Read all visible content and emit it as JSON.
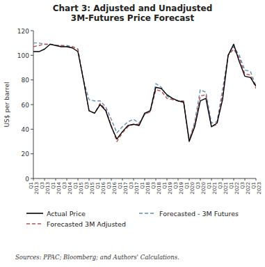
{
  "chart_data": {
    "type": "line",
    "title": "Chart 3: Adjusted and Unadjusted\n3M-Futures Price Forecast",
    "ylabel": "US$ per barrel",
    "source": "Sources: PPAC; Bloomberg; and Authors' Calculations.",
    "categories": [
      "Q1\n2013",
      null,
      "Q3\n2013",
      null,
      "Q1\n2014",
      null,
      "Q3\n2014",
      null,
      "Q1\n2015",
      null,
      "Q3\n2015",
      null,
      "Q1\n2016",
      null,
      "Q3\n2016",
      null,
      "Q1\n2017",
      null,
      "Q3\n2017",
      null,
      "Q1\n2018",
      null,
      "Q3\n2018",
      null,
      "Q1\n2019",
      null,
      "Q3\n2019",
      null,
      "Q1\n2020",
      null,
      "Q3\n2020",
      null,
      "Q1\n2021",
      null,
      "Q3\n2021",
      null,
      "Q1\n2022",
      null,
      "Q3\n2022",
      null,
      "Q1\n2023"
    ],
    "series": [
      {
        "name": "Actual Price",
        "color": "#000000",
        "line_style": "solid",
        "values": [
          103,
          103,
          105,
          109,
          108,
          107,
          107,
          106,
          103,
          80,
          55,
          53,
          60,
          55,
          42,
          32,
          38,
          43,
          44,
          43,
          53,
          55,
          74,
          73,
          68,
          65,
          63,
          62,
          30,
          42,
          63,
          65,
          42,
          45,
          64,
          100,
          109,
          95,
          83,
          82,
          75
        ]
      },
      {
        "name": "Forecasted - 3M Futures",
        "color": "#5B8DB8",
        "line_style": "dashed",
        "values": [
          110,
          110,
          109,
          109,
          108,
          108,
          108,
          107,
          105,
          80,
          64,
          63,
          63,
          58,
          48,
          37,
          42,
          46,
          48,
          45,
          52,
          55,
          77,
          74,
          67,
          64,
          63,
          62,
          31,
          46,
          72,
          70,
          45,
          46,
          72,
          100,
          107,
          100,
          88,
          87,
          75
        ]
      },
      {
        "name": "Forecasted 3M Adjusted",
        "color": "#C0504D",
        "line_style": "dashed",
        "values": [
          107,
          108,
          109,
          109,
          108,
          108,
          107,
          107,
          105,
          80,
          55,
          53,
          61,
          56,
          43,
          30,
          37,
          42,
          44,
          44,
          52,
          54,
          72,
          71,
          65,
          64,
          63,
          63,
          31,
          44,
          67,
          68,
          42,
          44,
          68,
          100,
          105,
          98,
          85,
          84,
          73
        ]
      }
    ],
    "ylim": [
      0,
      120
    ],
    "yticks": [
      0,
      20,
      40,
      60,
      80,
      100,
      120
    ],
    "grid": false,
    "legend": "bottom"
  }
}
